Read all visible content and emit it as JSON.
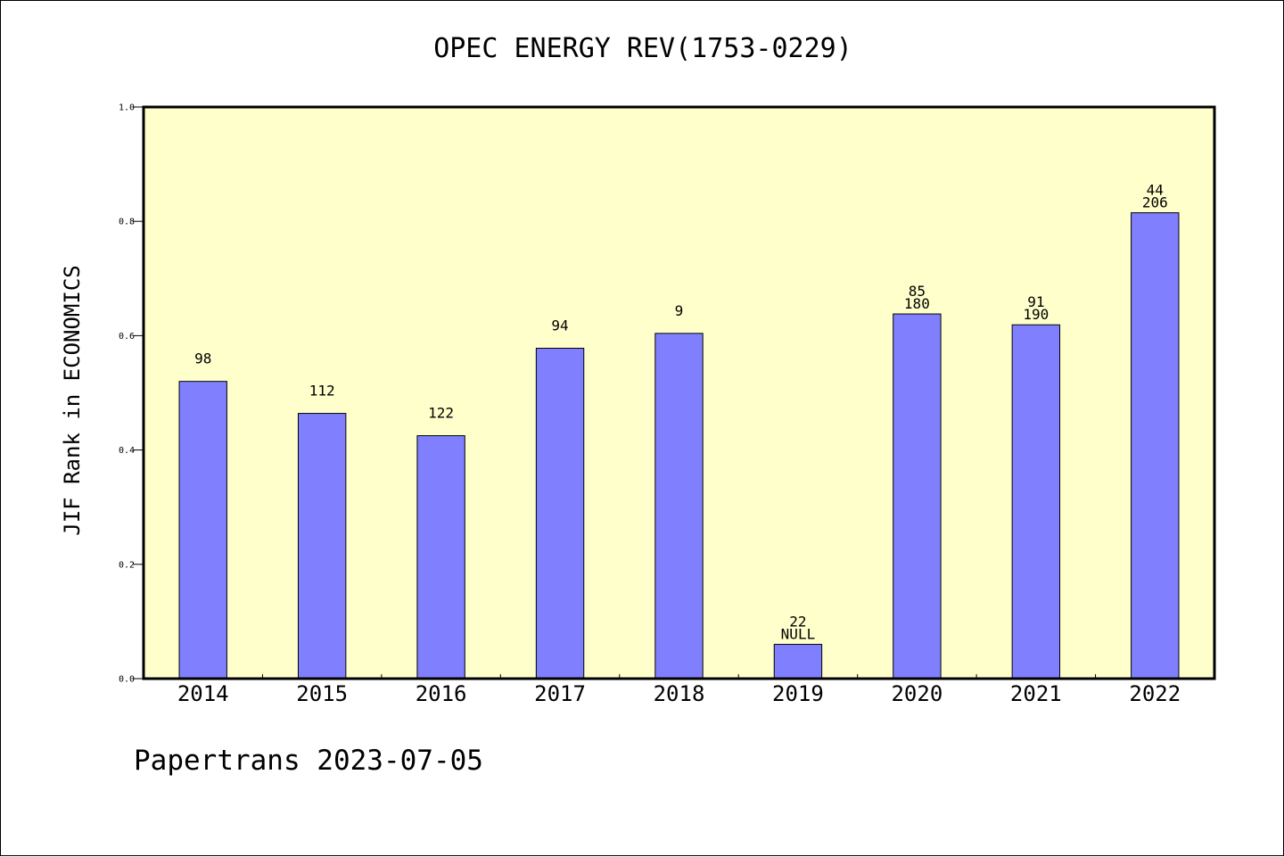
{
  "chart_data": {
    "type": "bar",
    "title": "OPEC ENERGY REV(1753-0229)",
    "ylabel": "JIF Rank in ECONOMICS",
    "xlabel": "",
    "ylim": [
      0,
      1.0
    ],
    "yticks": [
      "0.0",
      "0.2",
      "0.4",
      "0.6",
      "0.8",
      "1.0"
    ],
    "grid": false,
    "categories": [
      "2014",
      "2015",
      "2016",
      "2017",
      "2018",
      "2019",
      "2020",
      "2021",
      "2022"
    ],
    "values": [
      0.52,
      0.464,
      0.425,
      0.578,
      0.604,
      0.06,
      0.638,
      0.619,
      0.815
    ],
    "bar_labels": [
      [
        "98"
      ],
      [
        "112"
      ],
      [
        "122"
      ],
      [
        "94"
      ],
      [
        "9"
      ],
      [
        "22",
        "NULL"
      ],
      [
        "85",
        "180"
      ],
      [
        "91",
        "190"
      ],
      [
        "44",
        "206"
      ]
    ],
    "colors": {
      "bar": "#8080ff",
      "plot_background": "#ffffcc",
      "axis": "#000000"
    }
  },
  "footer": {
    "note": "Papertrans 2023-07-05"
  }
}
